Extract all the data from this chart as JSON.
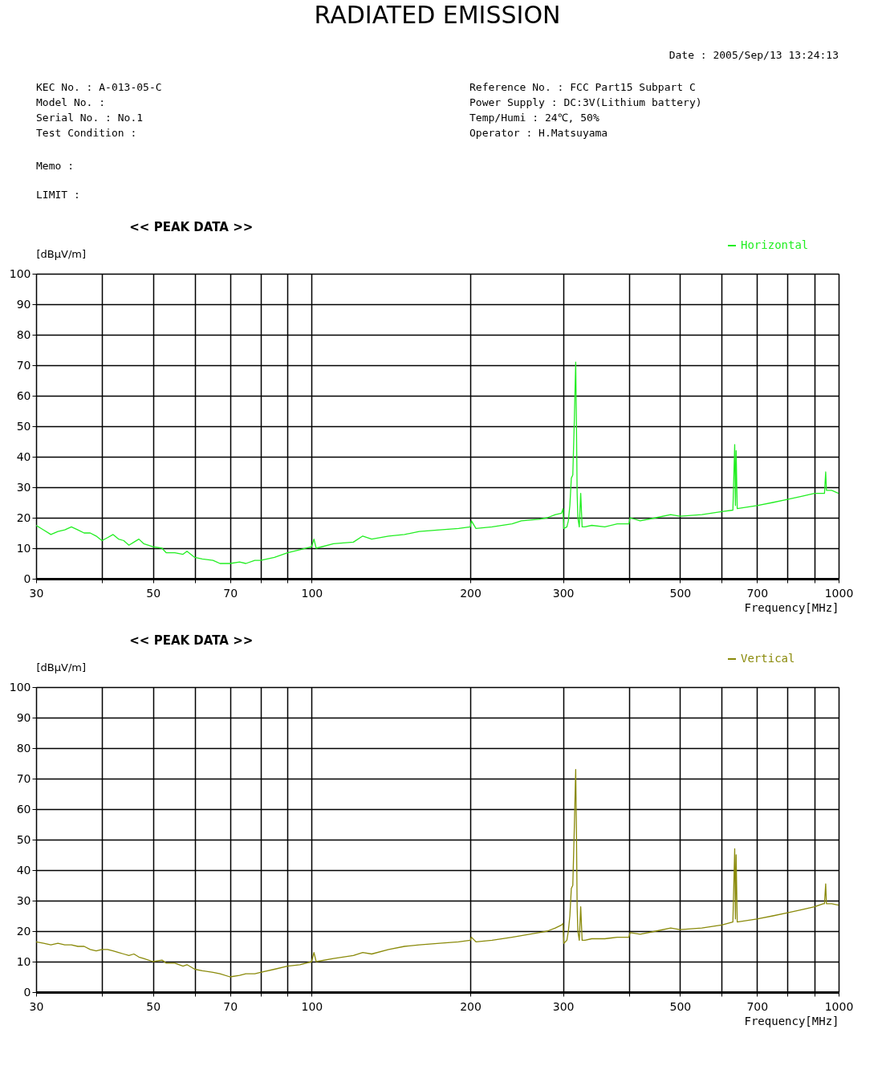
{
  "chart_data": [
    {
      "type": "other",
      "title": "RADIATED EMISSION",
      "annotations": [
        "Date : 2005/Sep/13 13:24:13",
        "KEC No.          : A-013-05-C",
        "Model No.        :",
        "Serial No.       : No.1",
        "Test Condition  :",
        "Reference No.    : FCC Part15 Subpart C",
        "Power Supply     : DC:3V(Lithium battery)",
        "Temp/Humi        : 24℃, 50%",
        "Operator         : H.Matsuyama",
        "Memo           :",
        "LIMIT :"
      ]
    },
    {
      "type": "line",
      "title": "<< PEAK DATA >>",
      "ylabel": "[dBμV/m]",
      "xlabel": "Frequency[MHz]",
      "log": "x",
      "grid": true,
      "legend": "top right",
      "xlim": [
        30,
        1000
      ],
      "ylim": [
        0,
        100
      ],
      "xticks": [
        30,
        {
          "value": 40,
          "label": null
        },
        50,
        {
          "value": 60,
          "label": null
        },
        70,
        {
          "value": 80,
          "label": null
        },
        {
          "value": 90,
          "label": null
        },
        100,
        200,
        300,
        {
          "value": 400,
          "label": null
        },
        500,
        {
          "value": 600,
          "label": null
        },
        700,
        {
          "value": 800,
          "label": null
        },
        {
          "value": 900,
          "label": null
        },
        1000
      ],
      "yticks": [
        0,
        10,
        20,
        30,
        40,
        50,
        60,
        70,
        80,
        90,
        100
      ],
      "series": [
        {
          "name": "Horizontal",
          "color": "#22ee22",
          "x": [
            30,
            31,
            32,
            33,
            34,
            35,
            36,
            37,
            38,
            39,
            40,
            41,
            42,
            43,
            44,
            45,
            46,
            47,
            48,
            50,
            52,
            53,
            55,
            57,
            58,
            60,
            62,
            65,
            67,
            70,
            73,
            75,
            78,
            80,
            85,
            90,
            95,
            100,
            101,
            102,
            110,
            120,
            125,
            130,
            140,
            150,
            160,
            175,
            190,
            200,
            201,
            205,
            220,
            240,
            250,
            270,
            280,
            290,
            298,
            300,
            301,
            305,
            307,
            309,
            311,
            313,
            315,
            317,
            318,
            319,
            320,
            322,
            324,
            326,
            330,
            340,
            360,
            380,
            400,
            402,
            420,
            450,
            480,
            500,
            550,
            600,
            630,
            635,
            637,
            639,
            642,
            700,
            750,
            800,
            850,
            900,
            940,
            945,
            948,
            970,
            1000
          ],
          "values": [
            17.5,
            16,
            14.5,
            15.5,
            16,
            17,
            16,
            15,
            15,
            14,
            12.5,
            13.5,
            14.5,
            13,
            12.5,
            11,
            12,
            13,
            11.5,
            10.5,
            10,
            8.5,
            8.5,
            8,
            9,
            7,
            6.5,
            6,
            5,
            5,
            5.5,
            5,
            6,
            6,
            7,
            8.5,
            9.5,
            10.5,
            13,
            10,
            11.5,
            12,
            14,
            13,
            14,
            14.5,
            15.5,
            16,
            16.5,
            17,
            19,
            16.5,
            17,
            18,
            19,
            19.5,
            20,
            21,
            21.5,
            23,
            16.5,
            17,
            19,
            24,
            33,
            34,
            51,
            71,
            51,
            28,
            20,
            17,
            28,
            17,
            17,
            17.5,
            17,
            18,
            18,
            20,
            19,
            20,
            21,
            20.5,
            21,
            22,
            22.5,
            44,
            24,
            42,
            23,
            24,
            25,
            26,
            27,
            28,
            28,
            35,
            29,
            29,
            28
          ]
        }
      ]
    },
    {
      "type": "line",
      "title": "<< PEAK DATA >>",
      "ylabel": "[dBμV/m]",
      "xlabel": "Frequency[MHz]",
      "log": "x",
      "grid": true,
      "legend": "top right",
      "xlim": [
        30,
        1000
      ],
      "ylim": [
        0,
        100
      ],
      "xticks": [
        30,
        {
          "value": 40,
          "label": null
        },
        50,
        {
          "value": 60,
          "label": null
        },
        70,
        {
          "value": 80,
          "label": null
        },
        {
          "value": 90,
          "label": null
        },
        100,
        200,
        300,
        {
          "value": 400,
          "label": null
        },
        500,
        {
          "value": 600,
          "label": null
        },
        700,
        {
          "value": 800,
          "label": null
        },
        {
          "value": 900,
          "label": null
        },
        1000
      ],
      "yticks": [
        0,
        10,
        20,
        30,
        40,
        50,
        60,
        70,
        80,
        90,
        100
      ],
      "series": [
        {
          "name": "Vertical",
          "color": "#8a8a0a",
          "x": [
            30,
            31,
            32,
            33,
            34,
            35,
            36,
            37,
            38,
            39,
            40,
            41,
            42,
            43,
            44,
            45,
            46,
            47,
            48,
            50,
            52,
            53,
            55,
            57,
            58,
            60,
            62,
            65,
            67,
            70,
            73,
            75,
            78,
            80,
            85,
            90,
            95,
            100,
            101,
            102,
            110,
            120,
            125,
            130,
            140,
            150,
            160,
            175,
            190,
            200,
            201,
            205,
            220,
            240,
            250,
            270,
            280,
            290,
            298,
            300,
            301,
            305,
            307,
            309,
            311,
            313,
            315,
            317,
            318,
            319,
            320,
            322,
            324,
            326,
            330,
            340,
            360,
            380,
            400,
            402,
            420,
            450,
            480,
            500,
            550,
            600,
            630,
            635,
            637,
            639,
            642,
            700,
            750,
            800,
            850,
            900,
            935,
            940,
            945,
            948,
            970,
            1000
          ],
          "values": [
            16.5,
            16,
            15.5,
            16,
            15.5,
            15.5,
            15,
            15,
            14,
            13.5,
            14,
            14,
            13.5,
            13,
            12.5,
            12,
            12.5,
            11.5,
            11,
            10,
            10.5,
            9.5,
            9.5,
            8.5,
            9,
            7.5,
            7,
            6.5,
            6,
            5,
            5.5,
            6,
            6,
            6.5,
            7.5,
            8.5,
            9,
            10,
            13,
            10,
            11,
            12,
            13,
            12.5,
            14,
            15,
            15.5,
            16,
            16.5,
            17,
            18,
            16.5,
            17,
            18,
            18.5,
            19.5,
            20,
            21,
            22,
            22.5,
            16,
            17,
            20,
            25,
            34,
            35,
            53,
            73,
            53,
            28,
            20,
            17,
            28,
            17,
            17,
            17.5,
            17.5,
            18,
            18,
            19.5,
            19,
            20,
            21,
            20.5,
            21,
            22,
            23,
            47,
            24,
            45,
            23,
            24,
            25,
            26,
            27,
            28,
            29,
            29,
            35.5,
            29,
            29,
            28.5
          ]
        }
      ]
    }
  ]
}
